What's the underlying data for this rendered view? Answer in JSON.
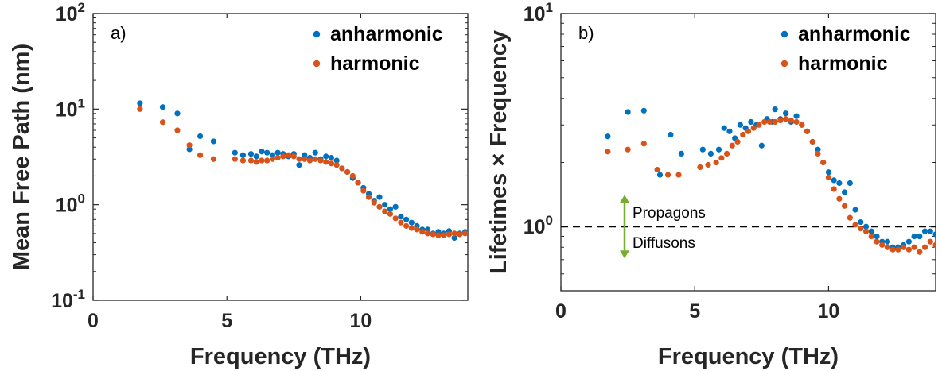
{
  "colors": {
    "anharmonic": "#0072BD",
    "harmonic": "#D95319",
    "arrow": "#77AC30",
    "axis": "#262626"
  },
  "chart_data": [
    {
      "type": "scatter",
      "panel_label": "a)",
      "xlabel": "Frequency (THz)",
      "ylabel": "Mean Free Path (nm)",
      "xlim": [
        0,
        14
      ],
      "ylim": [
        0.1,
        100
      ],
      "yscale": "log",
      "xticks": [
        "0",
        "5",
        "10"
      ],
      "yticks": [
        {
          "base": "10",
          "exp": "-1"
        },
        {
          "base": "10",
          "exp": "0"
        },
        {
          "base": "10",
          "exp": "1"
        },
        {
          "base": "10",
          "exp": "2"
        }
      ],
      "legend_position": "top-right",
      "series": [
        {
          "name": "anharmonic",
          "color": "#0072BD",
          "points": [
            [
              1.75,
              11.5
            ],
            [
              2.6,
              10.5
            ],
            [
              3.15,
              9.0
            ],
            [
              3.6,
              3.8
            ],
            [
              4.0,
              5.2
            ],
            [
              4.5,
              4.6
            ],
            [
              5.3,
              3.5
            ],
            [
              5.6,
              3.3
            ],
            [
              5.9,
              3.4
            ],
            [
              6.1,
              3.2
            ],
            [
              6.3,
              3.6
            ],
            [
              6.5,
              3.5
            ],
            [
              6.7,
              3.3
            ],
            [
              6.9,
              3.5
            ],
            [
              7.1,
              3.4
            ],
            [
              7.3,
              3.2
            ],
            [
              7.5,
              3.4
            ],
            [
              7.7,
              2.6
            ],
            [
              7.9,
              3.3
            ],
            [
              8.1,
              3.1
            ],
            [
              8.3,
              3.5
            ],
            [
              8.5,
              3.0
            ],
            [
              8.7,
              3.2
            ],
            [
              8.9,
              3.1
            ],
            [
              9.1,
              2.9
            ],
            [
              9.3,
              2.4
            ],
            [
              9.5,
              2.2
            ],
            [
              9.7,
              1.9
            ],
            [
              9.9,
              1.7
            ],
            [
              10.1,
              1.5
            ],
            [
              10.3,
              1.3
            ],
            [
              10.5,
              1.1
            ],
            [
              10.7,
              1.2
            ],
            [
              10.9,
              1.0
            ],
            [
              11.1,
              0.9
            ],
            [
              11.3,
              0.95
            ],
            [
              11.5,
              0.75
            ],
            [
              11.7,
              0.7
            ],
            [
              11.9,
              0.65
            ],
            [
              12.1,
              0.6
            ],
            [
              12.3,
              0.55
            ],
            [
              12.5,
              0.55
            ],
            [
              12.7,
              0.5
            ],
            [
              12.9,
              0.52
            ],
            [
              13.1,
              0.5
            ],
            [
              13.3,
              0.53
            ],
            [
              13.5,
              0.45
            ],
            [
              13.7,
              0.5
            ],
            [
              13.9,
              0.52
            ]
          ]
        },
        {
          "name": "harmonic",
          "color": "#D95319",
          "points": [
            [
              1.75,
              10.0
            ],
            [
              2.6,
              7.3
            ],
            [
              3.15,
              6.0
            ],
            [
              3.6,
              4.2
            ],
            [
              4.0,
              3.3
            ],
            [
              4.5,
              3.0
            ],
            [
              5.3,
              3.0
            ],
            [
              5.6,
              2.9
            ],
            [
              5.9,
              2.9
            ],
            [
              6.1,
              2.8
            ],
            [
              6.3,
              2.9
            ],
            [
              6.5,
              2.9
            ],
            [
              6.7,
              3.0
            ],
            [
              6.9,
              3.1
            ],
            [
              7.1,
              3.2
            ],
            [
              7.3,
              3.3
            ],
            [
              7.5,
              3.2
            ],
            [
              7.7,
              3.0
            ],
            [
              7.9,
              3.0
            ],
            [
              8.1,
              2.9
            ],
            [
              8.3,
              3.0
            ],
            [
              8.5,
              2.9
            ],
            [
              8.7,
              2.8
            ],
            [
              8.9,
              2.7
            ],
            [
              9.1,
              2.6
            ],
            [
              9.3,
              2.4
            ],
            [
              9.5,
              2.2
            ],
            [
              9.7,
              2.0
            ],
            [
              9.9,
              1.7
            ],
            [
              10.1,
              1.4
            ],
            [
              10.3,
              1.2
            ],
            [
              10.5,
              1.05
            ],
            [
              10.7,
              0.95
            ],
            [
              10.9,
              0.85
            ],
            [
              11.1,
              0.8
            ],
            [
              11.3,
              0.72
            ],
            [
              11.5,
              0.65
            ],
            [
              11.7,
              0.6
            ],
            [
              11.9,
              0.57
            ],
            [
              12.1,
              0.55
            ],
            [
              12.3,
              0.52
            ],
            [
              12.5,
              0.5
            ],
            [
              12.7,
              0.49
            ],
            [
              12.9,
              0.48
            ],
            [
              13.1,
              0.48
            ],
            [
              13.3,
              0.49
            ],
            [
              13.5,
              0.5
            ],
            [
              13.7,
              0.49
            ],
            [
              13.9,
              0.5
            ]
          ]
        }
      ]
    },
    {
      "type": "scatter",
      "panel_label": "b)",
      "xlabel": "Frequency (THz)",
      "ylabel": "Lifetimes × Frequency",
      "xlim": [
        0,
        14
      ],
      "ylim": [
        0.5,
        10
      ],
      "yscale": "log",
      "xticks": [
        "0",
        "5",
        "10"
      ],
      "yticks": [
        {
          "base": "10",
          "exp": "0"
        },
        {
          "base": "10",
          "exp": "1"
        }
      ],
      "legend_position": "top-right",
      "reference_line": {
        "y": 1,
        "style": "dashed"
      },
      "annotations": [
        "Propagons",
        "Diffusons"
      ],
      "series": [
        {
          "name": "anharmonic",
          "color": "#0072BD",
          "points": [
            [
              1.75,
              2.65
            ],
            [
              2.5,
              3.45
            ],
            [
              3.1,
              3.5
            ],
            [
              3.7,
              1.75
            ],
            [
              4.1,
              2.7
            ],
            [
              4.5,
              2.2
            ],
            [
              5.3,
              2.3
            ],
            [
              5.6,
              2.2
            ],
            [
              5.9,
              2.3
            ],
            [
              6.1,
              2.9
            ],
            [
              6.3,
              2.8
            ],
            [
              6.5,
              2.6
            ],
            [
              6.7,
              3.0
            ],
            [
              6.9,
              2.9
            ],
            [
              7.1,
              3.1
            ],
            [
              7.3,
              3.0
            ],
            [
              7.5,
              2.4
            ],
            [
              7.7,
              3.2
            ],
            [
              7.9,
              3.1
            ],
            [
              8.0,
              3.55
            ],
            [
              8.2,
              3.2
            ],
            [
              8.4,
              3.4
            ],
            [
              8.6,
              3.1
            ],
            [
              8.8,
              3.3
            ],
            [
              9.0,
              3.0
            ],
            [
              9.2,
              2.8
            ],
            [
              9.4,
              2.5
            ],
            [
              9.6,
              2.3
            ],
            [
              9.8,
              2.0
            ],
            [
              10.0,
              1.8
            ],
            [
              10.2,
              1.65
            ],
            [
              10.4,
              1.6
            ],
            [
              10.6,
              1.45
            ],
            [
              10.8,
              1.6
            ],
            [
              11.0,
              1.2
            ],
            [
              11.2,
              1.05
            ],
            [
              11.4,
              1.0
            ],
            [
              11.6,
              0.95
            ],
            [
              11.8,
              0.9
            ],
            [
              12.0,
              0.85
            ],
            [
              12.2,
              0.85
            ],
            [
              12.4,
              0.8
            ],
            [
              12.6,
              0.8
            ],
            [
              12.8,
              0.82
            ],
            [
              13.0,
              0.85
            ],
            [
              13.2,
              0.9
            ],
            [
              13.4,
              0.9
            ],
            [
              13.6,
              0.95
            ],
            [
              13.8,
              0.95
            ],
            [
              14.0,
              0.92
            ]
          ]
        },
        {
          "name": "harmonic",
          "color": "#D95319",
          "points": [
            [
              1.75,
              2.25
            ],
            [
              2.5,
              2.3
            ],
            [
              3.1,
              2.45
            ],
            [
              3.6,
              1.85
            ],
            [
              4.0,
              1.75
            ],
            [
              4.4,
              1.75
            ],
            [
              5.2,
              1.9
            ],
            [
              5.5,
              1.95
            ],
            [
              5.8,
              2.0
            ],
            [
              6.0,
              2.1
            ],
            [
              6.2,
              2.2
            ],
            [
              6.4,
              2.4
            ],
            [
              6.6,
              2.5
            ],
            [
              6.8,
              2.7
            ],
            [
              7.0,
              2.8
            ],
            [
              7.2,
              2.9
            ],
            [
              7.4,
              3.0
            ],
            [
              7.6,
              3.1
            ],
            [
              7.8,
              3.1
            ],
            [
              8.0,
              3.1
            ],
            [
              8.2,
              3.15
            ],
            [
              8.4,
              3.2
            ],
            [
              8.6,
              3.15
            ],
            [
              8.8,
              3.1
            ],
            [
              9.0,
              3.0
            ],
            [
              9.2,
              2.8
            ],
            [
              9.4,
              2.5
            ],
            [
              9.6,
              2.2
            ],
            [
              9.8,
              2.0
            ],
            [
              10.0,
              1.7
            ],
            [
              10.2,
              1.5
            ],
            [
              10.4,
              1.35
            ],
            [
              10.6,
              1.25
            ],
            [
              10.8,
              1.1
            ],
            [
              11.0,
              1.02
            ],
            [
              11.2,
              0.98
            ],
            [
              11.4,
              0.95
            ],
            [
              11.6,
              0.9
            ],
            [
              11.8,
              0.85
            ],
            [
              12.0,
              0.82
            ],
            [
              12.2,
              0.8
            ],
            [
              12.4,
              0.78
            ],
            [
              12.6,
              0.78
            ],
            [
              12.8,
              0.8
            ],
            [
              13.0,
              0.78
            ],
            [
              13.2,
              0.8
            ],
            [
              13.4,
              0.76
            ],
            [
              13.6,
              0.8
            ],
            [
              13.8,
              0.85
            ],
            [
              14.0,
              0.82
            ]
          ]
        }
      ]
    }
  ]
}
